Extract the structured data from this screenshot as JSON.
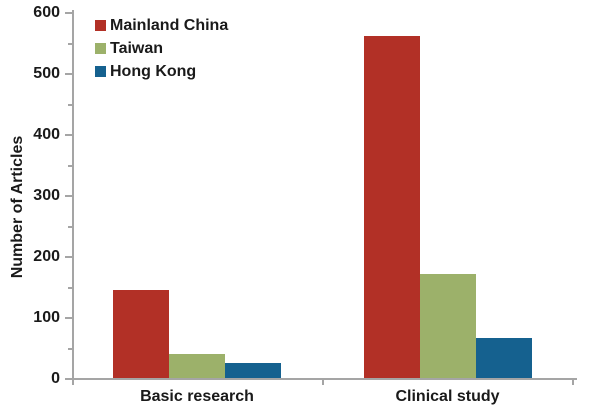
{
  "chart_data": {
    "type": "bar",
    "title": "",
    "xlabel": "",
    "ylabel": "Number of Articles",
    "categories": [
      "Basic research",
      "Clinical study"
    ],
    "series": [
      {
        "name": "Mainland China",
        "color": "#b23026",
        "values": [
          145,
          560
        ]
      },
      {
        "name": "Taiwan",
        "color": "#9cb16a",
        "values": [
          40,
          170
        ]
      },
      {
        "name": "Hong Kong",
        "color": "#15618f",
        "values": [
          25,
          65
        ]
      }
    ],
    "ylim": [
      0,
      600
    ],
    "y_major_step": 100,
    "y_minor_step": 50,
    "y_tick_labels": [
      "0",
      "100",
      "200",
      "300",
      "400",
      "500",
      "600"
    ],
    "grid": false,
    "legend_position": "top-left",
    "axis_color": "#a5a5a5",
    "text_color": "#1a1a1a",
    "background_color": "#ffffff"
  }
}
